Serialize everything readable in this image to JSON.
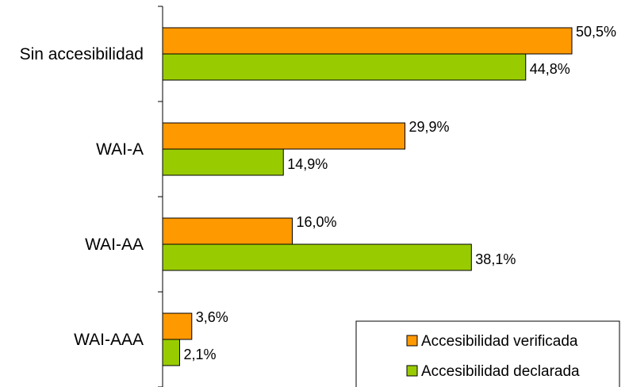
{
  "chart_data": {
    "type": "bar",
    "orientation": "horizontal",
    "categories": [
      "Sin accesibilidad",
      "WAI-A",
      "WAI-AA",
      "WAI-AAA"
    ],
    "series": [
      {
        "name": "Accesibilidad verificada",
        "color": "#FF9900",
        "values": [
          50.5,
          29.9,
          16.0,
          3.6
        ],
        "labels": [
          "50,5%",
          "29,9%",
          "16,0%",
          "3,6%"
        ]
      },
      {
        "name": "Accesibilidad declarada",
        "color": "#99CC00",
        "values": [
          44.8,
          14.9,
          38.1,
          2.1
        ],
        "labels": [
          "44,8%",
          "14,9%",
          "38,1%",
          "2,1%"
        ]
      }
    ],
    "xlim": [
      0,
      61
    ],
    "legend_position": "bottom-right",
    "grid": false
  }
}
